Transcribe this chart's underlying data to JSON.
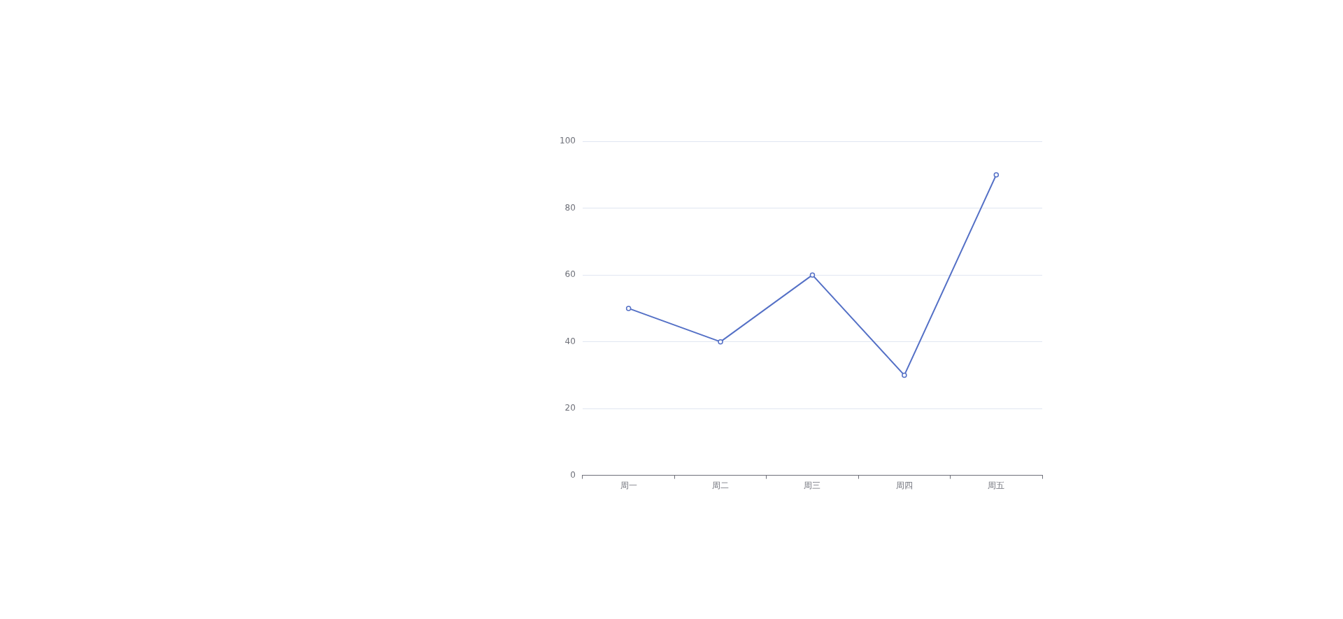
{
  "chart_data": {
    "type": "line",
    "categories": [
      "周一",
      "周二",
      "周三",
      "周四",
      "周五"
    ],
    "series": [
      {
        "color": "#5470c6",
        "values": [
          50,
          40,
          60,
          30,
          90
        ]
      }
    ],
    "ylim": [
      0,
      100
    ],
    "yticks": [
      0,
      20,
      40,
      60,
      80,
      100
    ],
    "grid": "y",
    "marker": "circle",
    "line_style": "solid",
    "legend": false
  }
}
